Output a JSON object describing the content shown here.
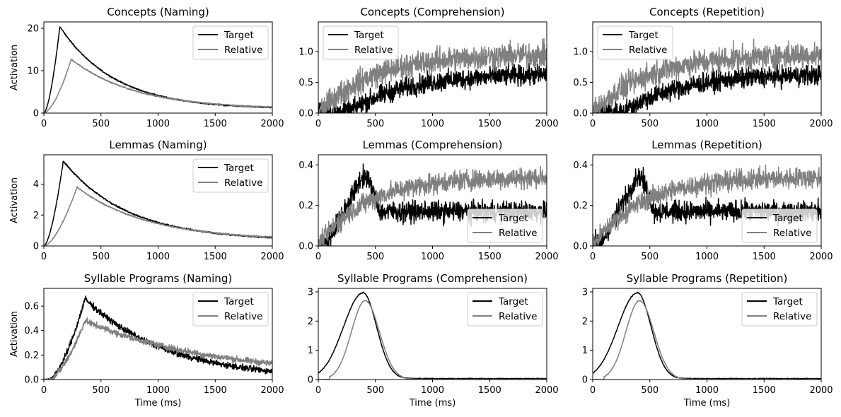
{
  "chart_data": [
    {
      "id": "p00",
      "type": "line",
      "title": "Concepts (Naming)",
      "xlabel": "",
      "ylabel": "Activation",
      "xlim": [
        0,
        2000
      ],
      "xticks": [
        0,
        500,
        1000,
        1500,
        2000
      ],
      "ylim": [
        0,
        21.5
      ],
      "yticks": [
        0,
        10,
        20
      ],
      "legend": {
        "position": "top-right",
        "entries": [
          "Target",
          "Relative"
        ]
      },
      "series": [
        {
          "name": "Target",
          "color": "#000000",
          "profile": "peak",
          "params": {
            "amp": 20.4,
            "rise": 140,
            "riseExp": 1.6,
            "tau": 480,
            "base": 0.9,
            "noise": 0.1
          },
          "noise_level": 0.15
        },
        {
          "name": "Relative",
          "color": "#808080",
          "profile": "peak",
          "params": {
            "amp": 12.7,
            "rise": 240,
            "riseExp": 1.6,
            "tau": 560,
            "base": 0.9,
            "noise": 0.1
          },
          "noise_level": 0.15
        }
      ]
    },
    {
      "id": "p01",
      "type": "line",
      "title": "Concepts (Comprehension)",
      "xlabel": "",
      "ylabel": "",
      "xlim": [
        0,
        2000
      ],
      "xticks": [
        0,
        500,
        1000,
        1500,
        2000
      ],
      "ylim": [
        0,
        1.48
      ],
      "yticks": [
        0,
        0.5,
        1.0
      ],
      "ytick_labels": [
        "0.0",
        "0.5",
        "1.0"
      ],
      "legend": {
        "position": "top-left",
        "entries": [
          "Target",
          "Relative"
        ]
      },
      "series": [
        {
          "name": "Target",
          "color": "#000000",
          "profile": "rise",
          "params": {
            "lvl": 0.64,
            "t0": 250,
            "tau": 500
          },
          "noise_level": 0.16
        },
        {
          "name": "Relative",
          "color": "#808080",
          "profile": "rise",
          "params": {
            "lvl": 0.96,
            "t0": 0,
            "tau": 480
          },
          "noise_level": 0.2
        }
      ]
    },
    {
      "id": "p02",
      "type": "line",
      "title": "Concepts (Repetition)",
      "xlabel": "",
      "ylabel": "",
      "xlim": [
        0,
        2000
      ],
      "xticks": [
        0,
        500,
        1000,
        1500,
        2000
      ],
      "ylim": [
        0,
        1.48
      ],
      "yticks": [
        0,
        0.5,
        1.0
      ],
      "ytick_labels": [
        "0.0",
        "0.5",
        "1.0"
      ],
      "legend": {
        "position": "top-left",
        "entries": [
          "Target",
          "Relative"
        ]
      },
      "series": [
        {
          "name": "Target",
          "color": "#000000",
          "profile": "rise",
          "params": {
            "lvl": 0.64,
            "t0": 250,
            "tau": 500
          },
          "noise_level": 0.16
        },
        {
          "name": "Relative",
          "color": "#808080",
          "profile": "rise",
          "params": {
            "lvl": 0.96,
            "t0": 0,
            "tau": 480
          },
          "noise_level": 0.2
        }
      ]
    },
    {
      "id": "p10",
      "type": "line",
      "title": "Lemmas (Naming)",
      "xlabel": "",
      "ylabel": "Activation",
      "xlim": [
        0,
        2000
      ],
      "xticks": [
        0,
        500,
        1000,
        1500,
        2000
      ],
      "ylim": [
        0,
        5.9
      ],
      "yticks": [
        0,
        2,
        4
      ],
      "legend": {
        "position": "top-right",
        "entries": [
          "Target",
          "Relative"
        ]
      },
      "series": [
        {
          "name": "Target",
          "color": "#000000",
          "profile": "peak",
          "params": {
            "amp": 5.5,
            "rise": 170,
            "riseExp": 1.6,
            "tau": 560,
            "base": 0.35
          },
          "noise_level": 0.05
        },
        {
          "name": "Relative",
          "color": "#808080",
          "profile": "peak",
          "params": {
            "amp": 3.8,
            "rise": 290,
            "riseExp": 1.6,
            "tau": 620,
            "base": 0.35
          },
          "noise_level": 0.04
        }
      ]
    },
    {
      "id": "p11",
      "type": "line",
      "title": "Lemmas (Comprehension)",
      "xlabel": "",
      "ylabel": "",
      "xlim": [
        0,
        2000
      ],
      "xticks": [
        0,
        500,
        1000,
        1500,
        2000
      ],
      "ylim": [
        0,
        0.45
      ],
      "yticks": [
        0,
        0.2,
        0.4
      ],
      "ytick_labels": [
        "0.0",
        "0.2",
        "0.4"
      ],
      "legend": {
        "position": "bottom-right",
        "entries": [
          "Target",
          "Relative"
        ]
      },
      "series": [
        {
          "name": "Target",
          "color": "#000000",
          "profile": "bump",
          "params": {
            "peakLvl": 0.34,
            "t0": 60,
            "tpk": 430,
            "tdrop": 540,
            "plateau": 0.17
          },
          "noise_level": 0.05
        },
        {
          "name": "Relative",
          "color": "#808080",
          "profile": "rise",
          "params": {
            "lvl": 0.34,
            "t0": 0,
            "tau": 420
          },
          "noise_level": 0.05
        }
      ]
    },
    {
      "id": "p12",
      "type": "line",
      "title": "Lemmas (Repetition)",
      "xlabel": "",
      "ylabel": "",
      "xlim": [
        0,
        2000
      ],
      "xticks": [
        0,
        500,
        1000,
        1500,
        2000
      ],
      "ylim": [
        0,
        0.45
      ],
      "yticks": [
        0,
        0.2,
        0.4
      ],
      "ytick_labels": [
        "0.0",
        "0.2",
        "0.4"
      ],
      "legend": {
        "position": "bottom-right",
        "entries": [
          "Target",
          "Relative"
        ]
      },
      "series": [
        {
          "name": "Target",
          "color": "#000000",
          "profile": "bump",
          "params": {
            "peakLvl": 0.34,
            "t0": 60,
            "tpk": 430,
            "tdrop": 540,
            "plateau": 0.17
          },
          "noise_level": 0.05
        },
        {
          "name": "Relative",
          "color": "#808080",
          "profile": "rise",
          "params": {
            "lvl": 0.34,
            "t0": 0,
            "tau": 420
          },
          "noise_level": 0.05
        }
      ]
    },
    {
      "id": "p20",
      "type": "line",
      "title": "Syllable Programs (Naming)",
      "xlabel": "Time (ms)",
      "ylabel": "Activation",
      "xlim": [
        0,
        2000
      ],
      "xticks": [
        0,
        500,
        1000,
        1500,
        2000
      ],
      "ylim": [
        0,
        0.745
      ],
      "yticks": [
        0,
        0.2,
        0.4,
        0.6
      ],
      "ytick_labels": [
        "0.0",
        "0.2",
        "0.4",
        "0.6"
      ],
      "legend": {
        "position": "top-right",
        "entries": [
          "Target",
          "Relative"
        ]
      },
      "series": [
        {
          "name": "Target",
          "color": "#000000",
          "profile": "peak",
          "params": {
            "amp": 0.66,
            "rise": 360,
            "riseExp": 1.6,
            "tau": 720,
            "base": 0.0,
            "start": 40
          },
          "noise_level": 0.025
        },
        {
          "name": "Relative",
          "color": "#808080",
          "profile": "peak",
          "params": {
            "amp": 0.48,
            "rise": 360,
            "riseExp": 1.6,
            "tau": 1100,
            "base": 0.03,
            "start": 40
          },
          "noise_level": 0.025
        }
      ]
    },
    {
      "id": "p21",
      "type": "line",
      "title": "Syllable Programs (Comprehension)",
      "xlabel": "Time (ms)",
      "ylabel": "",
      "xlim": [
        0,
        2000
      ],
      "xticks": [
        0,
        500,
        1000,
        1500,
        2000
      ],
      "ylim": [
        0,
        3.12
      ],
      "yticks": [
        0,
        1,
        2,
        3
      ],
      "legend": {
        "position": "top-right",
        "entries": [
          "Target",
          "Relative"
        ]
      },
      "series": [
        {
          "name": "Target",
          "color": "#000000",
          "profile": "hump",
          "params": {
            "amp": 2.95,
            "t0": 0,
            "tpk": 390,
            "sr": 170,
            "sd": 120,
            "base": 0.03
          },
          "noise_level": 0.015
        },
        {
          "name": "Relative",
          "color": "#808080",
          "profile": "hump",
          "params": {
            "amp": 2.7,
            "t0": 100,
            "tpk": 410,
            "sr": 120,
            "sd": 125,
            "base": 0.0
          },
          "noise_level": 0.015
        }
      ]
    },
    {
      "id": "p22",
      "type": "line",
      "title": "Syllable Programs (Repetition)",
      "xlabel": "Time (ms)",
      "ylabel": "",
      "xlim": [
        0,
        2000
      ],
      "xticks": [
        0,
        500,
        1000,
        1500,
        2000
      ],
      "ylim": [
        0,
        3.12
      ],
      "yticks": [
        0,
        1,
        2,
        3
      ],
      "legend": {
        "position": "top-right",
        "entries": [
          "Target",
          "Relative"
        ]
      },
      "series": [
        {
          "name": "Target",
          "color": "#000000",
          "profile": "hump",
          "params": {
            "amp": 2.95,
            "t0": 0,
            "tpk": 390,
            "sr": 170,
            "sd": 120,
            "base": 0.03
          },
          "noise_level": 0.015
        },
        {
          "name": "Relative",
          "color": "#808080",
          "profile": "hump",
          "params": {
            "amp": 2.7,
            "t0": 100,
            "tpk": 410,
            "sr": 120,
            "sd": 125,
            "base": 0.0
          },
          "noise_level": 0.015
        }
      ]
    }
  ]
}
